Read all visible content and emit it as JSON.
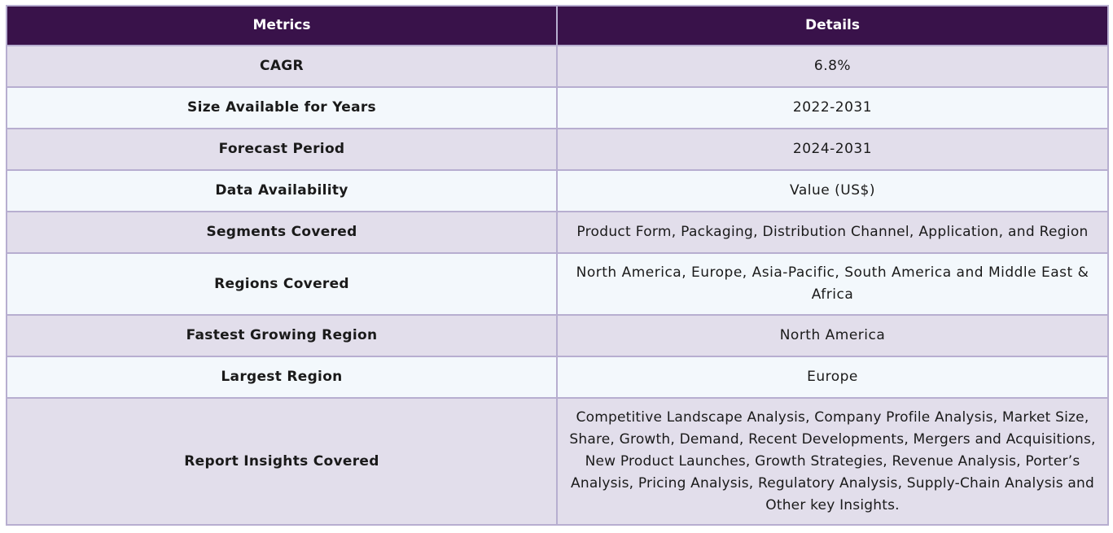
{
  "table": {
    "headers": {
      "metric": "Metrics",
      "detail": "Details"
    },
    "rows": [
      {
        "metric": "CAGR",
        "detail": "6.8%"
      },
      {
        "metric": "Size Available for Years",
        "detail": "2022-2031"
      },
      {
        "metric": "Forecast Period",
        "detail": "2024-2031"
      },
      {
        "metric": "Data Availability",
        "detail": "Value (US$)"
      },
      {
        "metric": "Segments Covered",
        "detail": "Product Form, Packaging, Distribution Channel, Application, and Region"
      },
      {
        "metric": "Regions Covered",
        "detail": "North America, Europe, Asia-Pacific, South America and Middle East & Africa"
      },
      {
        "metric": "Fastest Growing Region",
        "detail": "North America"
      },
      {
        "metric": "Largest Region",
        "detail": "Europe"
      },
      {
        "metric": "Report Insights Covered",
        "detail": "Competitive Landscape Analysis, Company Profile Analysis, Market Size, Share, Growth, Demand, Recent Developments, Mergers and Acquisitions, New Product Launches, Growth Strategies, Revenue Analysis, Porter’s Analysis, Pricing Analysis, Regulatory Analysis, Supply-Chain Analysis and Other key Insights."
      }
    ]
  },
  "colors": {
    "header_bg": "#39124a",
    "row_odd_bg": "#e2deeb",
    "row_even_bg": "#f3f8fc",
    "border": "#b7aed0"
  }
}
